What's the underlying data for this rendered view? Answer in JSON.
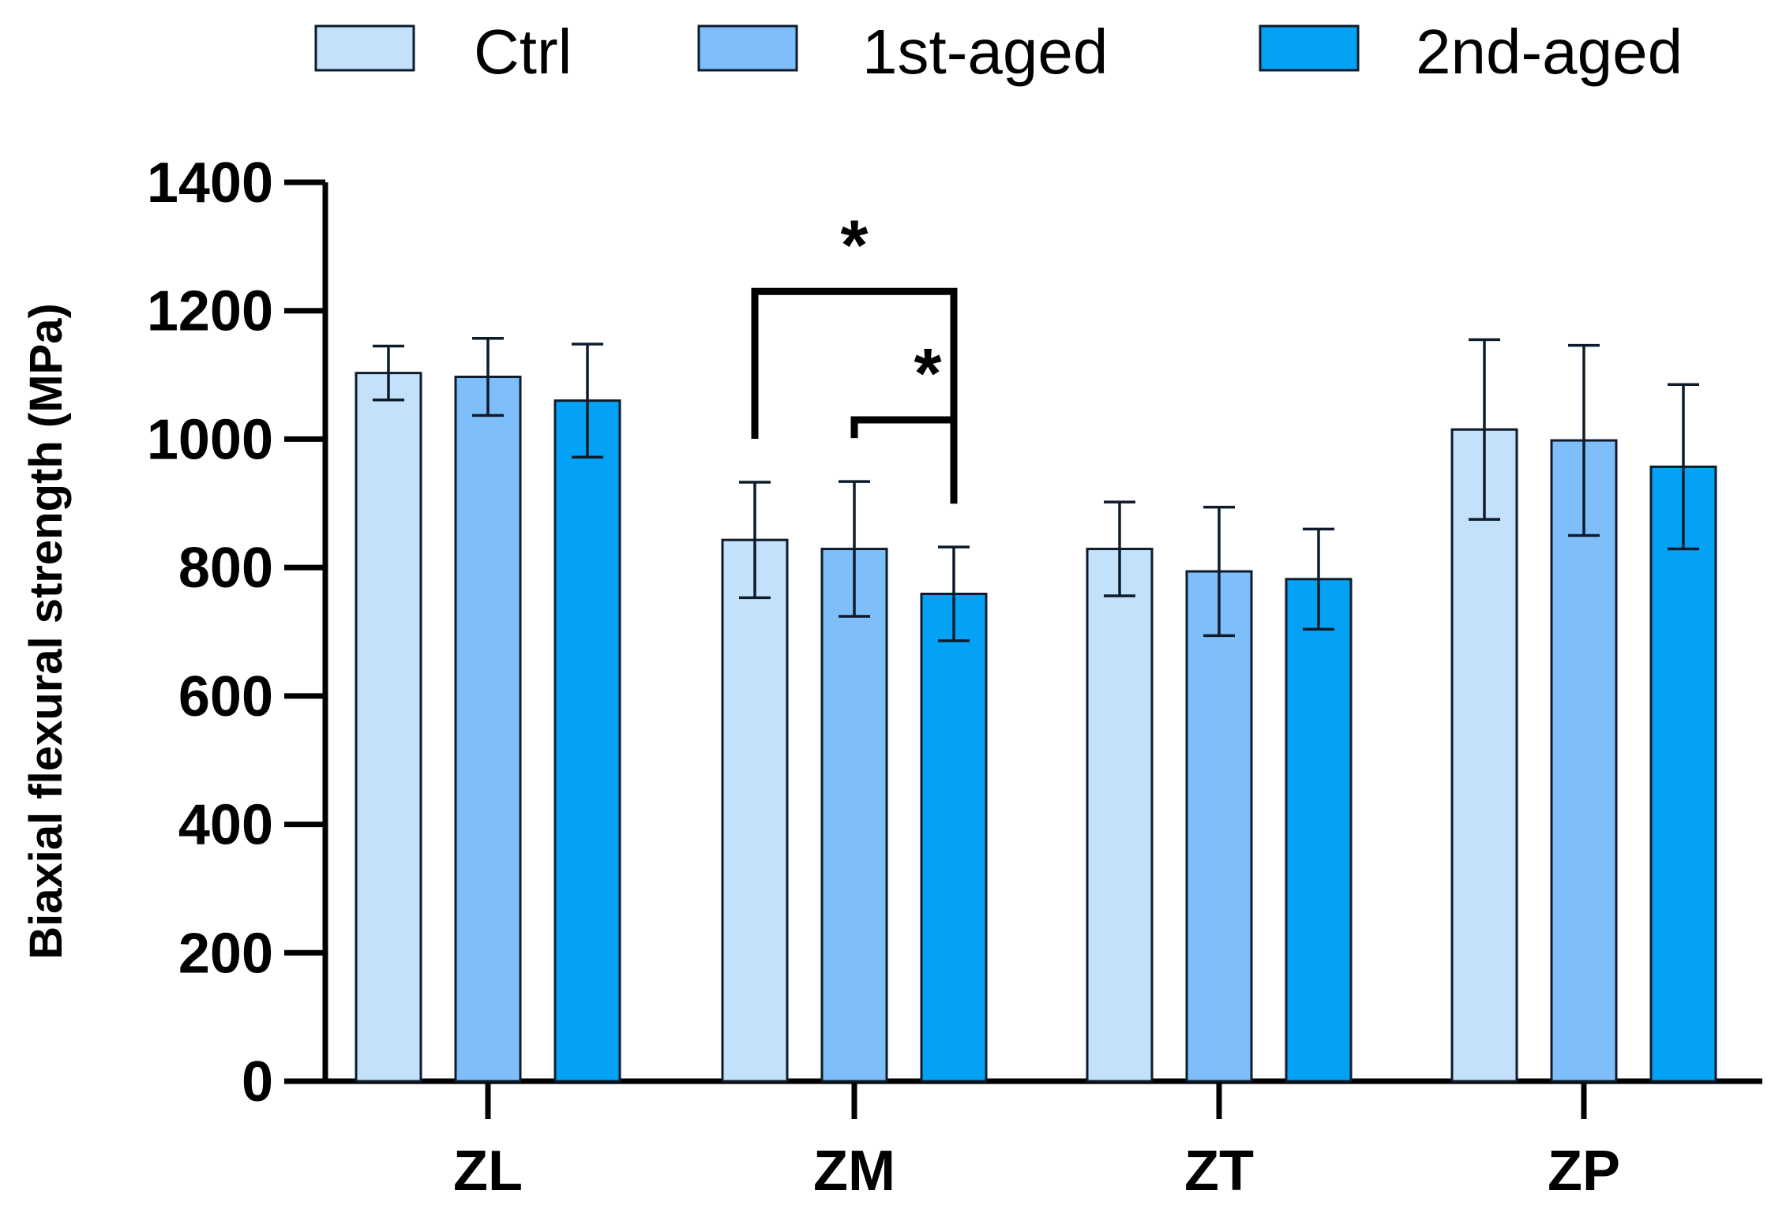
{
  "chart_data": {
    "type": "bar",
    "title": "",
    "xlabel": "",
    "ylabel": "Biaxial flexural strength (MPa)",
    "ylim": [
      0,
      1400
    ],
    "yticks": [
      0,
      200,
      400,
      600,
      800,
      1000,
      1200,
      1400
    ],
    "tick_labels": [
      "0",
      "200",
      "400",
      "600",
      "800",
      "1000",
      "1200",
      "1400"
    ],
    "categories": [
      "ZL",
      "ZM",
      "ZT",
      "ZP"
    ],
    "series": [
      {
        "name": "Ctrl",
        "color": "#c3e1fb",
        "values": [
          1103,
          843,
          829,
          1015
        ],
        "errors": [
          42,
          90,
          73,
          140
        ]
      },
      {
        "name": "1st-aged",
        "color": "#7ebffb",
        "values": [
          1097,
          829,
          794,
          998
        ],
        "errors": [
          60,
          105,
          100,
          148
        ]
      },
      {
        "name": "2nd-aged",
        "color": "#03a2f5",
        "values": [
          1060,
          759,
          782,
          957
        ],
        "errors": [
          88,
          73,
          78,
          128
        ]
      }
    ],
    "legend": {
      "position": "top",
      "entries": [
        "Ctrl",
        "1st-aged",
        "2nd-aged"
      ]
    },
    "grid": false,
    "annotations": [
      {
        "category": "ZM",
        "from_series": "Ctrl",
        "to_series": "2nd-aged",
        "label": "*",
        "level": 1230
      },
      {
        "category": "ZM",
        "from_series": "1st-aged",
        "to_series": "2nd-aged",
        "label": "*",
        "level": 1030
      }
    ]
  }
}
